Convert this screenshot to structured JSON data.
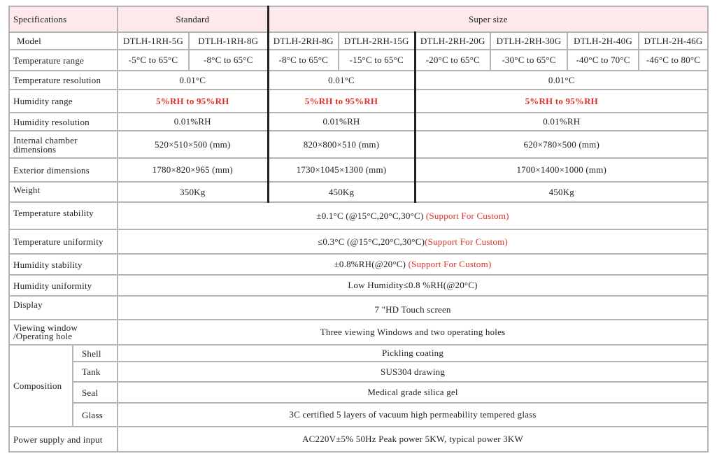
{
  "header": {
    "spec": "Specifications",
    "standard": "Standard",
    "super": "Super size"
  },
  "model": {
    "label": "Model",
    "values": [
      "DTLH-1RH-5G",
      "DTLH-1RH-8G",
      "DTLH-2RH-8G",
      "DTLH-2RH-15G",
      "DTLH-2RH-20G",
      "DTLH-2RH-30G",
      "DTLH-2H-40G",
      "DTLH-2H-46G"
    ]
  },
  "temp_range": {
    "label": "Temperature range",
    "values": [
      "-5°C  to 65°C",
      "-8°C  to 65°C",
      "-8°C  to 65°C",
      "-15°C  to 65°C",
      "-20°C  to 65°C",
      "-30°C  to 65°C",
      "-40°C  to 70°C",
      "-46°C  to 80°C"
    ]
  },
  "temp_res": {
    "label": "Temperature resolution",
    "values": [
      "0.01°C",
      "0.01°C",
      "0.01°C"
    ]
  },
  "hum_range": {
    "label": "Humidity range",
    "values": [
      "5%RH  to 95%RH",
      "5%RH  to 95%RH",
      "5%RH  to 95%RH"
    ]
  },
  "hum_res": {
    "label": "Humidity resolution",
    "values": [
      "0.01%RH",
      "0.01%RH",
      "0.01%RH"
    ]
  },
  "internal": {
    "label": "Internal chamber dimensions",
    "values": [
      "520×510×500 (mm)",
      "820×800×510 (mm)",
      "620×780×500 (mm)"
    ]
  },
  "exterior": {
    "label": "Exterior dimensions",
    "values": [
      "1780×820×965 (mm)",
      "1730×1045×1300  (mm)",
      "1700×1400×1000 (mm)"
    ]
  },
  "weight": {
    "label": "Weight",
    "values": [
      "350Kg",
      "450Kg",
      "450Kg"
    ]
  },
  "temp_stab": {
    "label": "Temperature stability",
    "value": "±0.1°C (@15°C,20°C,30°C) ",
    "note": "(Support For Custom)"
  },
  "temp_unif": {
    "label": "Temperature uniformity",
    "value": "≤0.3°C (@15°C,20°C,30°C)",
    "note": "(Support For Custom)"
  },
  "hum_stab": {
    "label": "Humidity stability",
    "value": "±0.8%RH(@20°C) ",
    "note": "(Support For Custom)"
  },
  "hum_unif": {
    "label": "Humidity uniformity",
    "value": "Low Humidity≤0.8 %RH(@20°C)"
  },
  "display": {
    "label": "Display",
    "value": "7 \"HD Touch screen"
  },
  "viewing": {
    "label": "Viewing window /Operating hole",
    "value": "Three viewing Windows and two operating holes"
  },
  "composition": {
    "label": "Composition",
    "items": [
      {
        "label": "Shell",
        "value": "Pickling coating"
      },
      {
        "label": "Tank",
        "value": "SUS304 drawing"
      },
      {
        "label": "Seal",
        "value": "Medical grade silica gel"
      },
      {
        "label": "Glass",
        "value": "3C certified 5 layers of vacuum high permeability tempered glass"
      }
    ]
  },
  "power": {
    "label": "Power supply and input",
    "value": "AC220V±5% 50Hz Peak power 5KW, typical power 3KW"
  },
  "colors": {
    "header_bg": "#fde8ea",
    "highlight": "#e0302a",
    "group_divider": "#222222"
  }
}
